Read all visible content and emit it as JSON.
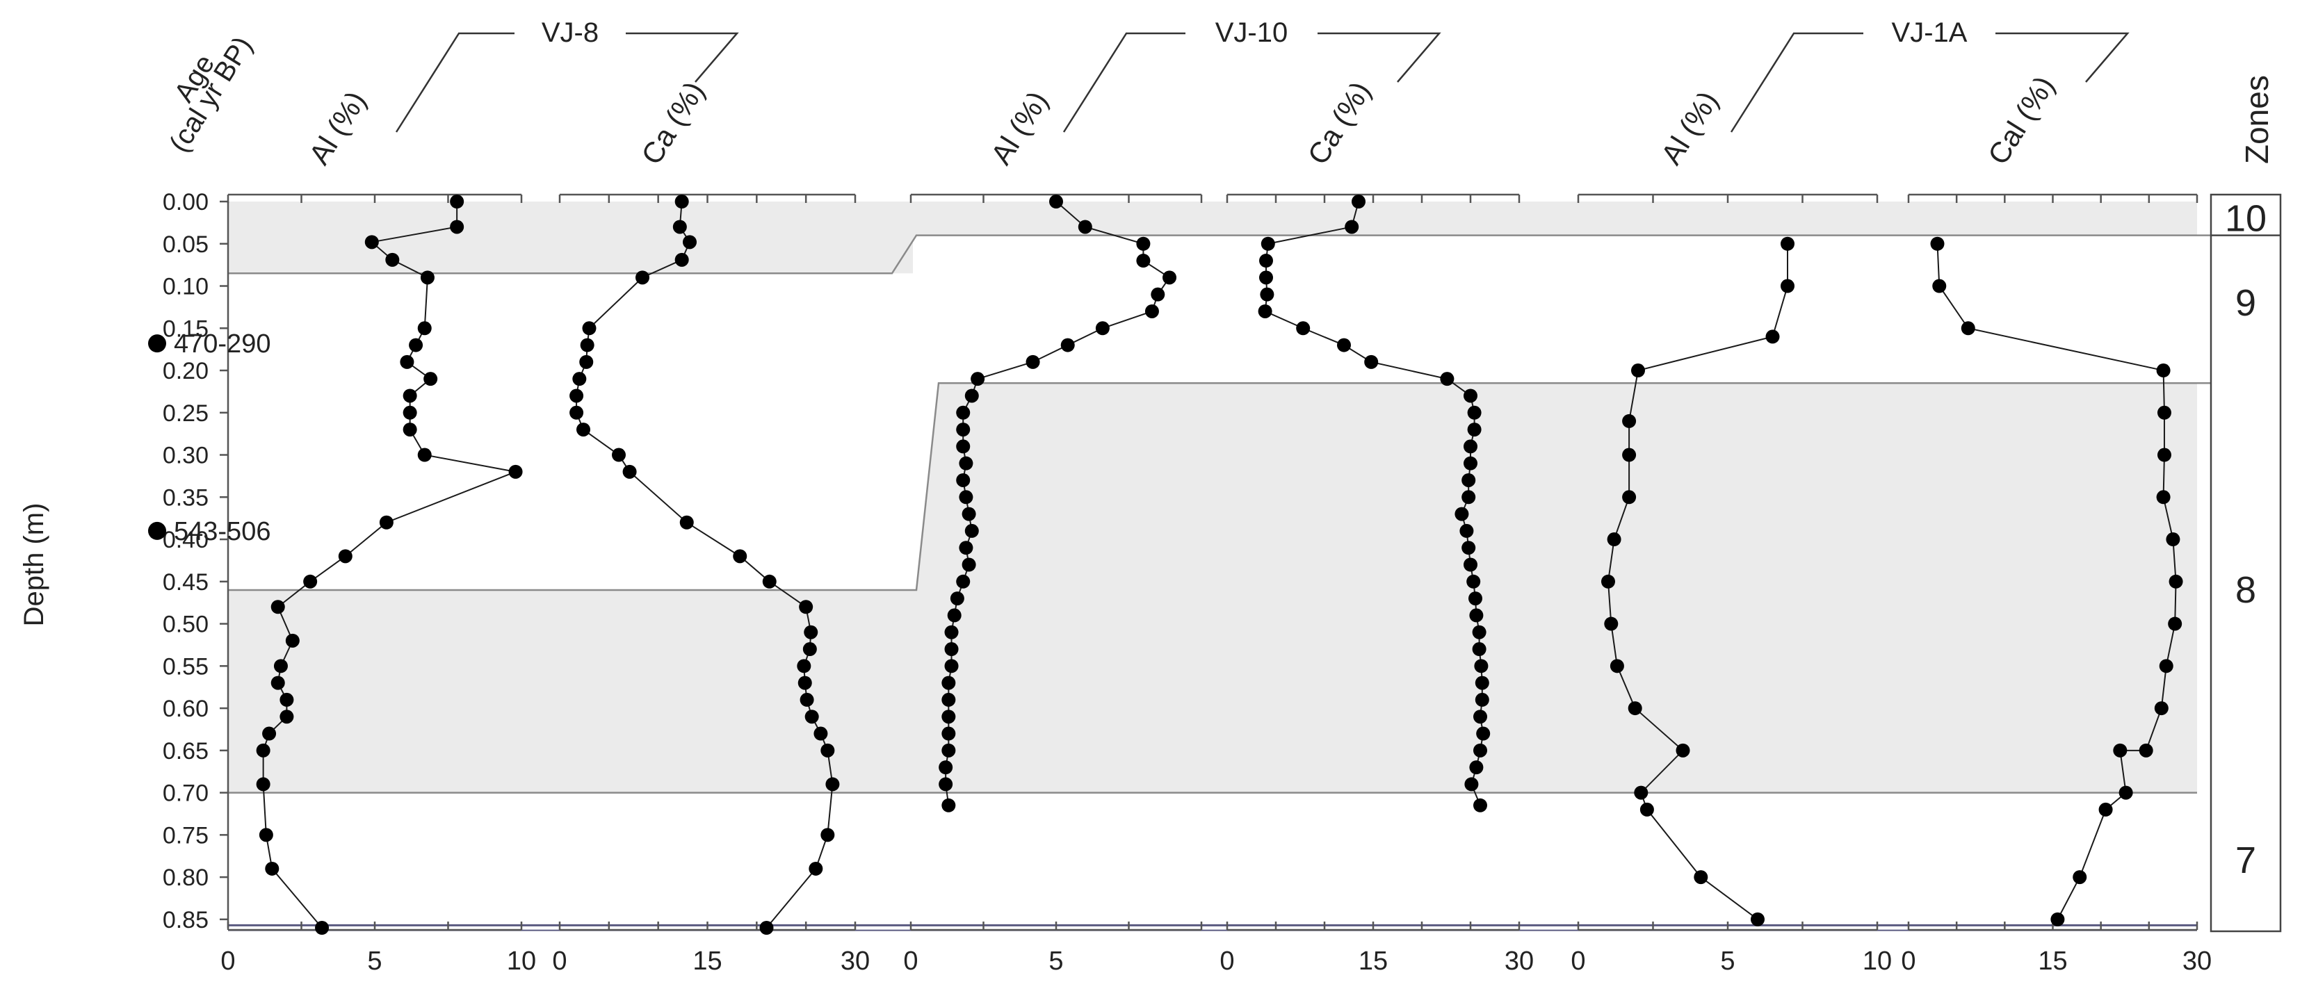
{
  "chart_data": {
    "type": "scatter",
    "subtype": "stratigraphic-depth-profile",
    "y_axis": {
      "label": "Depth (m)",
      "range": [
        0,
        0.86
      ],
      "inverted": true,
      "ticks": [
        "0.00",
        "0.05",
        "0.10",
        "0.15",
        "0.20",
        "0.25",
        "0.30",
        "0.35",
        "0.40",
        "0.45",
        "0.50",
        "0.55",
        "0.60",
        "0.65",
        "0.70",
        "0.75",
        "0.80",
        "0.85"
      ]
    },
    "age_header": {
      "line1": "Age",
      "line2": "(cal yr BP)"
    },
    "age_markers": [
      {
        "label": "470-290",
        "depth": 0.168
      },
      {
        "label": "543-506",
        "depth": 0.39
      }
    ],
    "zones": {
      "header": "Zones",
      "labels": [
        {
          "label": "10",
          "depth": 0.02
        },
        {
          "label": "9",
          "depth": 0.12
        },
        {
          "label": "8",
          "depth": 0.46
        },
        {
          "label": "7",
          "depth": 0.78
        }
      ],
      "shaded_bands": [
        {
          "core": "VJ-8",
          "from": 0,
          "to": 0.085
        },
        {
          "core": "VJ-8",
          "from": 0.46,
          "to": 0.7
        },
        {
          "core": "VJ-10",
          "from": 0.215,
          "to": 0.7
        },
        {
          "core": "VJ-1A",
          "from": 0.215,
          "to": 0.7
        },
        {
          "core": "right",
          "from": 0,
          "to": 0.04
        },
        {
          "core": "right",
          "from": 0.215,
          "to": 0.7
        }
      ]
    },
    "cores": [
      {
        "name": "VJ-8",
        "series": [
          {
            "name": "Al (%)",
            "x_ticks": [
              "0",
              "5",
              "10"
            ],
            "xlim": [
              0,
              10
            ],
            "points": [
              [
                7.8,
                0.0
              ],
              [
                7.8,
                0.03
              ],
              [
                4.9,
                0.048
              ],
              [
                5.6,
                0.069
              ],
              [
                6.8,
                0.09
              ],
              [
                6.7,
                0.15
              ],
              [
                6.4,
                0.17
              ],
              [
                6.1,
                0.19
              ],
              [
                6.9,
                0.21
              ],
              [
                6.2,
                0.23
              ],
              [
                6.2,
                0.25
              ],
              [
                6.2,
                0.27
              ],
              [
                6.7,
                0.3
              ],
              [
                9.8,
                0.32
              ],
              [
                5.4,
                0.38
              ],
              [
                4.0,
                0.42
              ],
              [
                2.8,
                0.45
              ],
              [
                1.7,
                0.48
              ],
              [
                2.2,
                0.52
              ],
              [
                1.8,
                0.55
              ],
              [
                1.7,
                0.57
              ],
              [
                2.0,
                0.59
              ],
              [
                2.0,
                0.61
              ],
              [
                1.4,
                0.63
              ],
              [
                1.2,
                0.65
              ],
              [
                1.2,
                0.69
              ],
              [
                1.3,
                0.75
              ],
              [
                1.5,
                0.79
              ],
              [
                3.2,
                0.86
              ]
            ]
          },
          {
            "name": "Ca (%)",
            "x_ticks": [
              "0",
              "15",
              "30"
            ],
            "xlim": [
              0,
              30
            ],
            "points": [
              [
                12.4,
                0.0
              ],
              [
                12.2,
                0.03
              ],
              [
                13.2,
                0.048
              ],
              [
                12.4,
                0.069
              ],
              [
                8.4,
                0.09
              ],
              [
                3.0,
                0.15
              ],
              [
                2.8,
                0.17
              ],
              [
                2.7,
                0.19
              ],
              [
                2.0,
                0.21
              ],
              [
                1.7,
                0.23
              ],
              [
                1.7,
                0.25
              ],
              [
                2.4,
                0.27
              ],
              [
                6.0,
                0.3
              ],
              [
                7.1,
                0.32
              ],
              [
                12.9,
                0.38
              ],
              [
                18.3,
                0.42
              ],
              [
                21.3,
                0.45
              ],
              [
                25.0,
                0.48
              ],
              [
                25.5,
                0.51
              ],
              [
                25.4,
                0.53
              ],
              [
                24.8,
                0.55
              ],
              [
                24.9,
                0.57
              ],
              [
                25.1,
                0.59
              ],
              [
                25.6,
                0.61
              ],
              [
                26.5,
                0.63
              ],
              [
                27.2,
                0.65
              ],
              [
                27.7,
                0.69
              ],
              [
                27.2,
                0.75
              ],
              [
                26.0,
                0.79
              ],
              [
                21.0,
                0.86
              ]
            ]
          }
        ]
      },
      {
        "name": "VJ-10",
        "series": [
          {
            "name": "Al (%)",
            "x_ticks": [
              "0",
              "5"
            ],
            "xlim": [
              0,
              10
            ],
            "points": [
              [
                5.0,
                0.0
              ],
              [
                6.0,
                0.03
              ],
              [
                8.0,
                0.05
              ],
              [
                8.0,
                0.07
              ],
              [
                8.9,
                0.09
              ],
              [
                8.5,
                0.11
              ],
              [
                8.3,
                0.13
              ],
              [
                6.6,
                0.15
              ],
              [
                5.4,
                0.17
              ],
              [
                4.2,
                0.19
              ],
              [
                2.3,
                0.21
              ],
              [
                2.1,
                0.23
              ],
              [
                1.8,
                0.25
              ],
              [
                1.8,
                0.27
              ],
              [
                1.8,
                0.29
              ],
              [
                1.9,
                0.31
              ],
              [
                1.8,
                0.33
              ],
              [
                1.9,
                0.35
              ],
              [
                2.0,
                0.37
              ],
              [
                2.1,
                0.39
              ],
              [
                1.9,
                0.41
              ],
              [
                2.0,
                0.43
              ],
              [
                1.8,
                0.45
              ],
              [
                1.6,
                0.47
              ],
              [
                1.5,
                0.49
              ],
              [
                1.4,
                0.51
              ],
              [
                1.4,
                0.53
              ],
              [
                1.4,
                0.55
              ],
              [
                1.3,
                0.57
              ],
              [
                1.3,
                0.59
              ],
              [
                1.3,
                0.61
              ],
              [
                1.3,
                0.63
              ],
              [
                1.3,
                0.65
              ],
              [
                1.2,
                0.67
              ],
              [
                1.2,
                0.69
              ],
              [
                1.3,
                0.715
              ]
            ]
          },
          {
            "name": "Ca (%)",
            "x_ticks": [
              "0",
              "15",
              "30"
            ],
            "xlim": [
              0,
              30
            ],
            "points": [
              [
                13.5,
                0.0
              ],
              [
                12.8,
                0.03
              ],
              [
                4.2,
                0.05
              ],
              [
                4.0,
                0.07
              ],
              [
                4.0,
                0.09
              ],
              [
                4.1,
                0.11
              ],
              [
                3.9,
                0.13
              ],
              [
                7.8,
                0.15
              ],
              [
                12.0,
                0.17
              ],
              [
                14.8,
                0.19
              ],
              [
                22.6,
                0.21
              ],
              [
                25.0,
                0.23
              ],
              [
                25.4,
                0.25
              ],
              [
                25.4,
                0.27
              ],
              [
                25.0,
                0.29
              ],
              [
                25.0,
                0.31
              ],
              [
                24.8,
                0.33
              ],
              [
                24.8,
                0.35
              ],
              [
                24.1,
                0.37
              ],
              [
                24.6,
                0.39
              ],
              [
                24.8,
                0.41
              ],
              [
                25.0,
                0.43
              ],
              [
                25.3,
                0.45
              ],
              [
                25.5,
                0.47
              ],
              [
                25.6,
                0.49
              ],
              [
                25.9,
                0.51
              ],
              [
                25.9,
                0.53
              ],
              [
                26.1,
                0.55
              ],
              [
                26.2,
                0.57
              ],
              [
                26.2,
                0.59
              ],
              [
                26.0,
                0.61
              ],
              [
                26.3,
                0.63
              ],
              [
                26.0,
                0.65
              ],
              [
                25.6,
                0.67
              ],
              [
                25.1,
                0.69
              ],
              [
                26.0,
                0.715
              ]
            ]
          }
        ]
      },
      {
        "name": "VJ-1A",
        "series": [
          {
            "name": "Al (%)",
            "x_ticks": [
              "0",
              "5",
              "10"
            ],
            "xlim": [
              0,
              10
            ],
            "points": [
              [
                7.0,
                0.05
              ],
              [
                7.0,
                0.1
              ],
              [
                6.5,
                0.16
              ],
              [
                2.0,
                0.2
              ],
              [
                1.7,
                0.26
              ],
              [
                1.7,
                0.3
              ],
              [
                1.7,
                0.35
              ],
              [
                1.2,
                0.4
              ],
              [
                1.0,
                0.45
              ],
              [
                1.1,
                0.5
              ],
              [
                1.3,
                0.55
              ],
              [
                1.9,
                0.6
              ],
              [
                3.5,
                0.65
              ],
              [
                2.1,
                0.7
              ],
              [
                2.3,
                0.72
              ],
              [
                4.1,
                0.8
              ],
              [
                6.0,
                0.85
              ]
            ]
          },
          {
            "name": "Cal (%)",
            "x_ticks": [
              "0",
              "15",
              "30"
            ],
            "xlim": [
              0,
              30
            ],
            "points": [
              [
                3.0,
                0.05
              ],
              [
                3.2,
                0.1
              ],
              [
                6.2,
                0.15
              ],
              [
                26.5,
                0.2
              ],
              [
                26.6,
                0.25
              ],
              [
                26.6,
                0.3
              ],
              [
                26.5,
                0.35
              ],
              [
                27.5,
                0.4
              ],
              [
                27.8,
                0.45
              ],
              [
                27.7,
                0.5
              ],
              [
                26.8,
                0.55
              ],
              [
                26.3,
                0.6
              ],
              [
                24.7,
                0.65
              ],
              [
                22.0,
                0.65
              ],
              [
                22.6,
                0.7
              ],
              [
                20.5,
                0.72
              ],
              [
                17.8,
                0.8
              ],
              [
                15.5,
                0.85
              ]
            ]
          }
        ]
      }
    ]
  }
}
